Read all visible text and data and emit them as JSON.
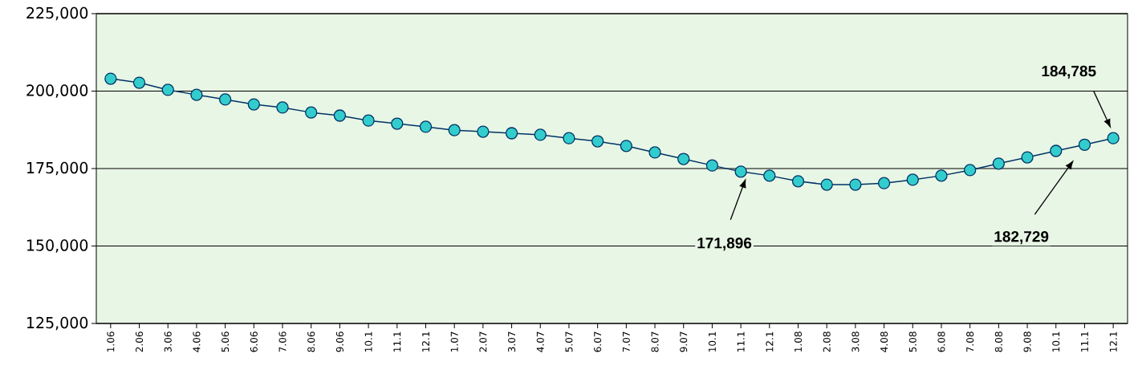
{
  "chart_data": {
    "type": "line",
    "categories": [
      "1.06",
      "2.06",
      "3.06",
      "4.06",
      "5.06",
      "6.06",
      "7.06",
      "8.06",
      "9.06",
      "10.1",
      "11.1",
      "12.1",
      "1.07",
      "2.07",
      "3.07",
      "4.07",
      "5.07",
      "6.07",
      "7.07",
      "8.07",
      "9.07",
      "10.1",
      "11.1",
      "12.1",
      "1.08",
      "2.08",
      "3.08",
      "4.08",
      "5.08",
      "6.08",
      "7.08",
      "8.08",
      "9.08",
      "10.1",
      "11.1",
      "12.1"
    ],
    "series": [
      {
        "color": "#003366",
        "values": [
          204000,
          202700,
          200400,
          198800,
          197300,
          195700,
          194700,
          193100,
          192100,
          190500,
          189500,
          188500,
          187400,
          186900,
          186400,
          185900,
          184800,
          183800,
          182300,
          180200,
          178100,
          176000,
          174000,
          172700,
          170900,
          169800,
          169800,
          170300,
          171400,
          172700,
          174500,
          176600,
          178600,
          180700,
          182700,
          184800
        ]
      }
    ],
    "marker": "circle",
    "ylim": [
      125000,
      225000
    ],
    "yticks": [
      {
        "value": 125000,
        "label": "125,000"
      },
      {
        "value": 150000,
        "label": "150,000"
      },
      {
        "value": 175000,
        "label": "175,000"
      },
      {
        "value": 200000,
        "label": "200,000"
      },
      {
        "value": 225000,
        "label": "225,000"
      }
    ],
    "grid": "y",
    "annotations": [
      "171,896",
      "182,729",
      "184,785"
    ]
  }
}
